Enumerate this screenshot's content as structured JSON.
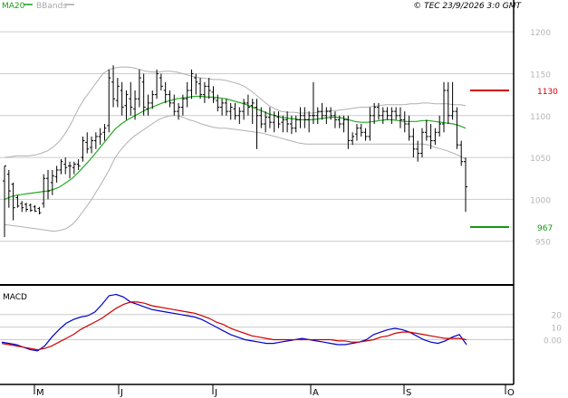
{
  "header": {
    "legend": [
      {
        "label": "MA20",
        "color": "#1a9e1a"
      },
      {
        "label": "BBands",
        "color": "#a8a8a8"
      }
    ],
    "copyright": "© TEC 23/9/2026 3:0 GMT"
  },
  "colors": {
    "price_bar": "#000000",
    "ma20": "#22aa22",
    "bbands": "#b0b0b0",
    "macd": "#0000cc",
    "signal": "#cc0000",
    "resistance": "#cc0000",
    "support": "#119911",
    "grid": "#cccccc",
    "frame": "#000000"
  },
  "chart_data": [
    {
      "type": "ohlc",
      "panel": "price",
      "ylim": [
        900,
        1225
      ],
      "yticks": [
        950,
        1000,
        1050,
        1100,
        1150,
        1200
      ],
      "ytick_labels": [
        "950",
        "1000",
        "1050",
        "1100",
        "1150",
        "1200"
      ],
      "x_months": [
        "M",
        "J",
        "J",
        "A",
        "S",
        "O"
      ],
      "bars": [
        [
          1022,
          1040,
          955,
          1040
        ],
        [
          1030,
          1035,
          990,
          1010
        ],
        [
          1018,
          1020,
          975,
          990
        ],
        [
          1002,
          1005,
          990,
          992
        ],
        [
          995,
          998,
          985,
          990
        ],
        [
          994,
          996,
          985,
          988
        ],
        [
          993,
          995,
          985,
          987
        ],
        [
          991,
          993,
          985,
          986
        ],
        [
          989,
          991,
          982,
          984
        ],
        [
          995,
          1030,
          990,
          1025
        ],
        [
          1025,
          1035,
          1000,
          1010
        ],
        [
          1020,
          1035,
          1005,
          1028
        ],
        [
          1027,
          1040,
          1020,
          1035
        ],
        [
          1035,
          1048,
          1030,
          1045
        ],
        [
          1042,
          1050,
          1030,
          1038
        ],
        [
          1040,
          1045,
          1025,
          1040
        ],
        [
          1038,
          1045,
          1030,
          1042
        ],
        [
          1042,
          1048,
          1035,
          1040
        ],
        [
          1050,
          1075,
          1045,
          1070
        ],
        [
          1068,
          1080,
          1055,
          1060
        ],
        [
          1062,
          1075,
          1055,
          1070
        ],
        [
          1070,
          1080,
          1060,
          1075
        ],
        [
          1075,
          1085,
          1065,
          1078
        ],
        [
          1080,
          1090,
          1070,
          1085
        ],
        [
          1088,
          1155,
          1080,
          1145
        ],
        [
          1140,
          1160,
          1110,
          1120
        ],
        [
          1118,
          1145,
          1110,
          1135
        ],
        [
          1130,
          1140,
          1100,
          1110
        ],
        [
          1112,
          1130,
          1095,
          1125
        ],
        [
          1120,
          1140,
          1100,
          1110
        ],
        [
          1108,
          1130,
          1095,
          1120
        ],
        [
          1120,
          1155,
          1110,
          1145
        ],
        [
          1140,
          1150,
          1100,
          1110
        ],
        [
          1108,
          1125,
          1100,
          1115
        ],
        [
          1115,
          1130,
          1108,
          1125
        ],
        [
          1125,
          1155,
          1120,
          1150
        ],
        [
          1145,
          1150,
          1130,
          1135
        ],
        [
          1130,
          1140,
          1115,
          1125
        ],
        [
          1125,
          1130,
          1110,
          1115
        ],
        [
          1115,
          1125,
          1100,
          1105
        ],
        [
          1105,
          1115,
          1095,
          1110
        ],
        [
          1110,
          1125,
          1100,
          1120
        ],
        [
          1120,
          1140,
          1110,
          1130
        ],
        [
          1130,
          1155,
          1120,
          1150
        ],
        [
          1145,
          1150,
          1125,
          1140
        ],
        [
          1138,
          1145,
          1120,
          1125
        ],
        [
          1125,
          1140,
          1115,
          1135
        ],
        [
          1135,
          1145,
          1120,
          1130
        ],
        [
          1128,
          1135,
          1115,
          1120
        ],
        [
          1118,
          1125,
          1105,
          1110
        ],
        [
          1110,
          1120,
          1100,
          1115
        ],
        [
          1115,
          1120,
          1100,
          1105
        ],
        [
          1105,
          1115,
          1095,
          1110
        ],
        [
          1108,
          1115,
          1095,
          1100
        ],
        [
          1100,
          1110,
          1090,
          1105
        ],
        [
          1105,
          1120,
          1095,
          1115
        ],
        [
          1115,
          1125,
          1100,
          1110
        ],
        [
          1112,
          1120,
          1090,
          1115
        ],
        [
          1110,
          1120,
          1060,
          1100
        ],
        [
          1100,
          1110,
          1085,
          1090
        ],
        [
          1090,
          1105,
          1080,
          1098
        ],
        [
          1098,
          1110,
          1085,
          1092
        ],
        [
          1092,
          1105,
          1080,
          1100
        ],
        [
          1098,
          1105,
          1085,
          1090
        ],
        [
          1092,
          1100,
          1080,
          1095
        ],
        [
          1095,
          1105,
          1080,
          1090
        ],
        [
          1090,
          1100,
          1078,
          1085
        ],
        [
          1085,
          1100,
          1080,
          1095
        ],
        [
          1095,
          1110,
          1085,
          1100
        ],
        [
          1100,
          1110,
          1085,
          1095
        ],
        [
          1095,
          1105,
          1080,
          1100
        ],
        [
          1100,
          1140,
          1090,
          1100
        ],
        [
          1100,
          1110,
          1090,
          1105
        ],
        [
          1105,
          1115,
          1095,
          1100
        ],
        [
          1100,
          1110,
          1090,
          1105
        ],
        [
          1105,
          1110,
          1095,
          1100
        ],
        [
          1100,
          1105,
          1085,
          1095
        ],
        [
          1095,
          1100,
          1085,
          1090
        ],
        [
          1090,
          1100,
          1080,
          1095
        ],
        [
          1095,
          1100,
          1060,
          1070
        ],
        [
          1070,
          1080,
          1065,
          1075
        ],
        [
          1078,
          1090,
          1070,
          1085
        ],
        [
          1085,
          1090,
          1075,
          1080
        ],
        [
          1080,
          1085,
          1070,
          1075
        ],
        [
          1075,
          1110,
          1070,
          1100
        ],
        [
          1100,
          1115,
          1090,
          1110
        ],
        [
          1110,
          1115,
          1095,
          1100
        ],
        [
          1100,
          1110,
          1090,
          1105
        ],
        [
          1105,
          1110,
          1095,
          1100
        ],
        [
          1100,
          1110,
          1090,
          1105
        ],
        [
          1105,
          1110,
          1095,
          1100
        ],
        [
          1100,
          1110,
          1085,
          1095
        ],
        [
          1095,
          1105,
          1080,
          1090
        ],
        [
          1090,
          1100,
          1070,
          1075
        ],
        [
          1075,
          1085,
          1050,
          1060
        ],
        [
          1060,
          1070,
          1045,
          1055
        ],
        [
          1055,
          1085,
          1050,
          1080
        ],
        [
          1080,
          1095,
          1070,
          1075
        ],
        [
          1075,
          1090,
          1060,
          1070
        ],
        [
          1070,
          1085,
          1065,
          1080
        ],
        [
          1080,
          1100,
          1075,
          1090
        ],
        [
          1090,
          1140,
          1080,
          1130
        ],
        [
          1130,
          1140,
          1090,
          1100
        ],
        [
          1100,
          1140,
          1095,
          1105
        ],
        [
          1105,
          1110,
          1060,
          1065
        ],
        [
          1065,
          1070,
          1040,
          1045
        ],
        [
          1045,
          1050,
          985,
          1015
        ]
      ],
      "ma20": [
        1000,
        1003,
        1005,
        1006,
        1007,
        1008,
        1009,
        1010,
        1012,
        1015,
        1020,
        1025,
        1032,
        1040,
        1048,
        1057,
        1066,
        1075,
        1084,
        1090,
        1095,
        1099,
        1103,
        1107,
        1110,
        1113,
        1116,
        1118,
        1120,
        1121,
        1122,
        1123,
        1123,
        1122,
        1122,
        1121,
        1120,
        1118,
        1116,
        1114,
        1111,
        1108,
        1105,
        1102,
        1100,
        1098,
        1097,
        1096,
        1095,
        1095,
        1095,
        1096,
        1097,
        1098,
        1098,
        1097,
        1095,
        1093,
        1092,
        1092,
        1093,
        1094,
        1095,
        1095,
        1094,
        1093,
        1093,
        1093,
        1094,
        1094,
        1093,
        1092,
        1091,
        1090,
        1088,
        1085
      ],
      "bb_upper": [
        1050,
        1051,
        1052,
        1052,
        1052,
        1053,
        1055,
        1058,
        1063,
        1070,
        1080,
        1093,
        1108,
        1120,
        1130,
        1140,
        1150,
        1155,
        1157,
        1158,
        1158,
        1157,
        1155,
        1153,
        1152,
        1152,
        1153,
        1153,
        1152,
        1150,
        1148,
        1146,
        1145,
        1144,
        1143,
        1143,
        1142,
        1140,
        1138,
        1135,
        1130,
        1124,
        1118,
        1112,
        1108,
        1105,
        1104,
        1104,
        1103,
        1103,
        1103,
        1104,
        1105,
        1106,
        1106,
        1107,
        1108,
        1109,
        1110,
        1110,
        1111,
        1112,
        1113,
        1113,
        1113,
        1113,
        1114,
        1114,
        1115,
        1115,
        1114,
        1114,
        1114,
        1113,
        1113,
        1112
      ],
      "bb_lower": [
        970,
        969,
        968,
        967,
        966,
        965,
        964,
        963,
        962,
        963,
        965,
        970,
        978,
        988,
        998,
        1010,
        1022,
        1035,
        1050,
        1060,
        1068,
        1075,
        1080,
        1085,
        1090,
        1095,
        1098,
        1100,
        1100,
        1098,
        1095,
        1093,
        1090,
        1088,
        1086,
        1085,
        1085,
        1084,
        1083,
        1082,
        1081,
        1080,
        1079,
        1077,
        1075,
        1073,
        1071,
        1069,
        1067,
        1066,
        1066,
        1066,
        1066,
        1066,
        1066,
        1066,
        1066,
        1066,
        1066,
        1066,
        1066,
        1066,
        1066,
        1066,
        1066,
        1066,
        1066,
        1066,
        1066,
        1065,
        1062,
        1060,
        1058,
        1055,
        1052,
        1048
      ],
      "levels": [
        {
          "name": "resistance",
          "value": 1130,
          "label": "1130"
        },
        {
          "name": "support",
          "value": 967,
          "label": "967"
        }
      ]
    },
    {
      "type": "line",
      "panel": "macd",
      "title": "MACD",
      "ylim": [
        -35,
        40
      ],
      "yticks": [
        0,
        10,
        20
      ],
      "ytick_labels": [
        "0.00",
        "10",
        "20"
      ],
      "series": [
        {
          "key": "macd",
          "values": [
            -2,
            -3,
            -4,
            -6,
            -8,
            -9,
            -5,
            2,
            8,
            13,
            16,
            18,
            19,
            22,
            28,
            35,
            36,
            34,
            30,
            28,
            26,
            24,
            23,
            22,
            21,
            20,
            19,
            18,
            16,
            13,
            10,
            7,
            4,
            2,
            0,
            -1,
            -2,
            -3,
            -3,
            -2,
            -1,
            0,
            1,
            0,
            -1,
            -2,
            -3,
            -4,
            -4,
            -3,
            -2,
            0,
            4,
            6,
            8,
            9,
            8,
            6,
            3,
            0,
            -2,
            -3,
            -1,
            2,
            4,
            -4
          ]
        },
        {
          "key": "signal",
          "values": [
            -3,
            -4,
            -5,
            -6,
            -7,
            -8,
            -7,
            -5,
            -2,
            1,
            4,
            8,
            11,
            14,
            17,
            21,
            25,
            28,
            30,
            30,
            29,
            27,
            26,
            25,
            24,
            23,
            22,
            21,
            19,
            17,
            14,
            12,
            9,
            7,
            5,
            3,
            2,
            1,
            0,
            0,
            0,
            0,
            0,
            0,
            0,
            0,
            0,
            -1,
            -1,
            -2,
            -2,
            -1,
            0,
            2,
            3,
            5,
            6,
            6,
            5,
            4,
            3,
            2,
            1,
            1,
            1,
            0
          ]
        }
      ]
    }
  ]
}
